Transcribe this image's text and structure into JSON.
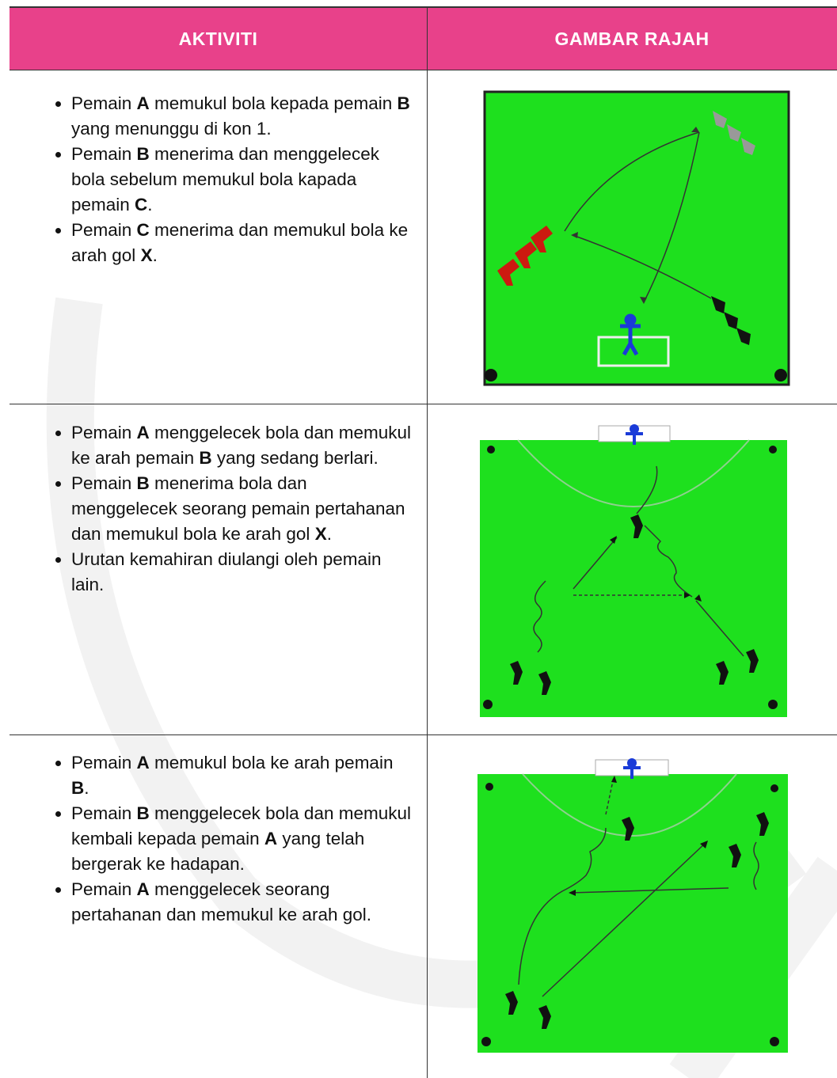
{
  "table": {
    "headers": [
      "AKTIVITI",
      "GAMBAR RAJAH"
    ],
    "rows": [
      {
        "items": [
          [
            {
              "t": "Pemain "
            },
            {
              "t": "A",
              "bold": true
            },
            {
              "t": " memukul bola kepada pemain "
            },
            {
              "t": "B",
              "bold": true
            },
            {
              "t": " yang menunggu di kon 1."
            }
          ],
          [
            {
              "t": "Pemain "
            },
            {
              "t": "B",
              "bold": true
            },
            {
              "t": " menerima dan menggelecek bola sebelum memukul bola kapada pemain "
            },
            {
              "t": "C",
              "bold": true
            },
            {
              "t": "."
            }
          ],
          [
            {
              "t": "Pemain "
            },
            {
              "t": "C",
              "bold": true
            },
            {
              "t": " menerima dan memukul bola ke arah gol "
            },
            {
              "t": "X",
              "bold": true
            },
            {
              "t": "."
            }
          ]
        ]
      },
      {
        "items": [
          [
            {
              "t": "Pemain "
            },
            {
              "t": "A",
              "bold": true
            },
            {
              "t": " menggelecek bola dan memukul ke arah pemain "
            },
            {
              "t": "B",
              "bold": true
            },
            {
              "t": " yang sedang berlari."
            }
          ],
          [
            {
              "t": "Pemain "
            },
            {
              "t": "B",
              "bold": true
            },
            {
              "t": " menerima bola dan menggelecek seorang pemain pertahanan dan memukul bola ke arah gol "
            },
            {
              "t": "X",
              "bold": true
            },
            {
              "t": "."
            }
          ],
          [
            {
              "t": "Urutan kemahiran diulangi oleh pemain lain."
            }
          ]
        ]
      },
      {
        "items": [
          [
            {
              "t": "Pemain "
            },
            {
              "t": "A",
              "bold": true
            },
            {
              "t": " memukul bola ke arah pemain "
            },
            {
              "t": "B",
              "bold": true
            },
            {
              "t": "."
            }
          ],
          [
            {
              "t": "Pemain "
            },
            {
              "t": "B",
              "bold": true
            },
            {
              "t": " menggelecek bola dan memukul kembali kepada pemain "
            },
            {
              "t": "A",
              "bold": true
            },
            {
              "t": " yang telah bergerak ke hadapan."
            }
          ],
          [
            {
              "t": "Pemain "
            },
            {
              "t": "A",
              "bold": true
            },
            {
              "t": " menggelecek seorang pertahanan dan memukul ke arah gol."
            }
          ]
        ]
      }
    ]
  }
}
